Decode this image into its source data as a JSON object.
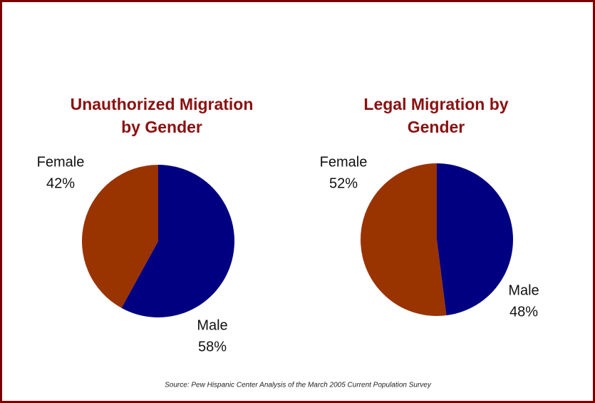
{
  "chart_data": [
    {
      "type": "pie",
      "title": [
        "Unauthorized Migration",
        "by Gender"
      ],
      "categories": [
        "Male",
        "Female"
      ],
      "values": [
        58,
        42
      ],
      "value_labels": [
        "58%",
        "42%"
      ],
      "colors": [
        "#000080",
        "#993300"
      ]
    },
    {
      "type": "pie",
      "title": [
        "Legal Migration by",
        "Gender"
      ],
      "categories": [
        "Male",
        "Female"
      ],
      "values": [
        48,
        52
      ],
      "value_labels": [
        "48%",
        "52%"
      ],
      "colors": [
        "#000080",
        "#993300"
      ]
    }
  ],
  "source": "Source: Pew Hispanic Center Analysis of the March 2005 Current Population Survey"
}
